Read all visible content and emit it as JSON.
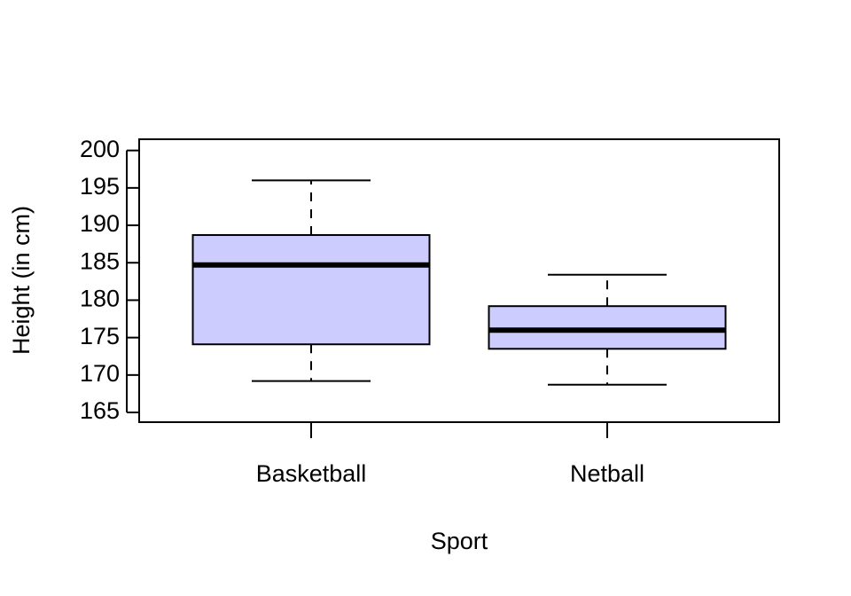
{
  "chart_data": {
    "type": "boxplot",
    "x_label": "Sport",
    "y_label": "Height (in cm)",
    "categories": [
      "Basketball",
      "Netball"
    ],
    "boxes": [
      {
        "min": 169.2,
        "q1": 174.1,
        "median": 184.7,
        "q3": 188.7,
        "max": 196.0
      },
      {
        "min": 168.7,
        "q1": 173.5,
        "median": 176.0,
        "q3": 179.2,
        "max": 183.4
      }
    ],
    "color": "#ccccff",
    "ylim": [
      163.7,
      201.5
    ],
    "yticks": [
      165,
      170,
      175,
      180,
      185,
      190,
      195,
      200
    ]
  }
}
